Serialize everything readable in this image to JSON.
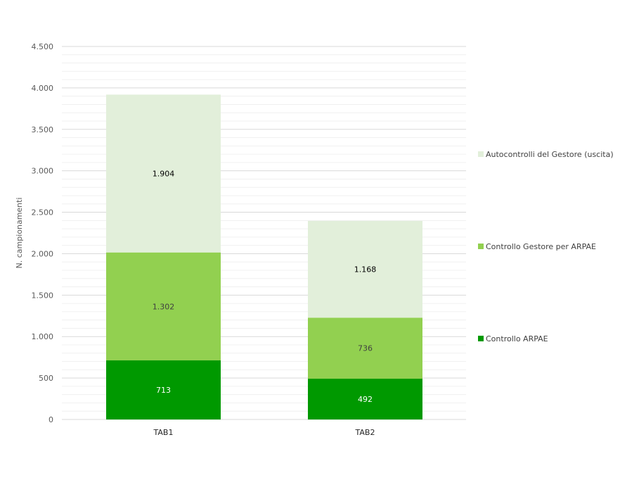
{
  "chart_data": {
    "type": "bar",
    "stacked": true,
    "title": "",
    "xlabel": "",
    "ylabel": "N. campionamenti",
    "ylim": [
      0,
      4500
    ],
    "y_ticks": [
      0,
      500,
      1000,
      1500,
      2000,
      2500,
      3000,
      3500,
      4000,
      4500
    ],
    "y_tick_labels": [
      "0",
      "500",
      "1.000",
      "1.500",
      "2.000",
      "2.500",
      "3.000",
      "3.500",
      "4.000",
      "4.500"
    ],
    "minor_grid_step": 100,
    "grid": true,
    "legend_position": "right",
    "categories": [
      "TAB1",
      "TAB2"
    ],
    "series": [
      {
        "name": "Controllo ARPAE",
        "color": "#009900",
        "label_color": "#ffffff",
        "values": [
          713,
          492
        ],
        "labels": [
          "713",
          "492"
        ]
      },
      {
        "name": "Controllo Gestore per ARPAE",
        "color": "#92d050",
        "label_color": "#404040",
        "values": [
          1302,
          736
        ],
        "labels": [
          "1.302",
          "736"
        ]
      },
      {
        "name": "Autocontrolli del Gestore (uscita)",
        "color": "#e2efda",
        "label_color": "#000000",
        "values": [
          1904,
          1168
        ],
        "labels": [
          "1.904",
          "1.168"
        ]
      }
    ],
    "legend_order": [
      2,
      1,
      0
    ]
  }
}
